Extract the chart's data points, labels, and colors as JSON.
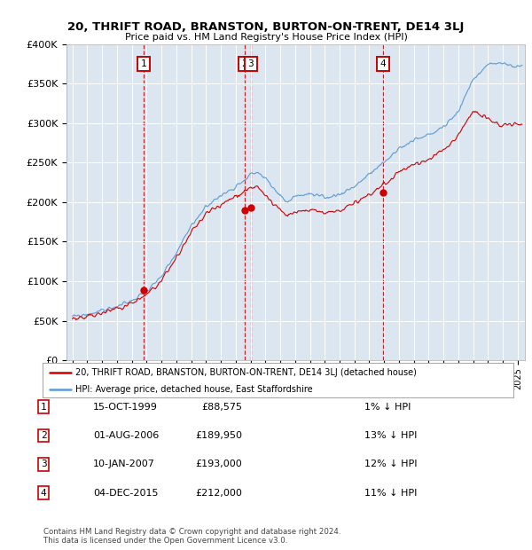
{
  "title": "20, THRIFT ROAD, BRANSTON, BURTON-ON-TRENT, DE14 3LJ",
  "subtitle": "Price paid vs. HM Land Registry's House Price Index (HPI)",
  "transactions": [
    {
      "num": 1,
      "date_num": 1999.79,
      "price": 88575
    },
    {
      "num": 2,
      "date_num": 2006.58,
      "price": 189950
    },
    {
      "num": 3,
      "date_num": 2007.03,
      "price": 193000
    },
    {
      "num": 4,
      "date_num": 2015.92,
      "price": 212000
    }
  ],
  "transaction_table": [
    {
      "num": 1,
      "date": "15-OCT-1999",
      "price": "£88,575",
      "hpi": "1% ↓ HPI"
    },
    {
      "num": 2,
      "date": "01-AUG-2006",
      "price": "£189,950",
      "hpi": "13% ↓ HPI"
    },
    {
      "num": 3,
      "date": "10-JAN-2007",
      "price": "£193,000",
      "hpi": "12% ↓ HPI"
    },
    {
      "num": 4,
      "date": "04-DEC-2015",
      "price": "£212,000",
      "hpi": "11% ↓ HPI"
    }
  ],
  "legend_line1": "20, THRIFT ROAD, BRANSTON, BURTON-ON-TRENT, DE14 3LJ (detached house)",
  "legend_line2": "HPI: Average price, detached house, East Staffordshire",
  "footer1": "Contains HM Land Registry data © Crown copyright and database right 2024.",
  "footer2": "This data is licensed under the Open Government Licence v3.0.",
  "ylim": [
    0,
    400000
  ],
  "yticks": [
    0,
    50000,
    100000,
    150000,
    200000,
    250000,
    300000,
    350000,
    400000
  ],
  "red_color": "#cc0000",
  "blue_color": "#5b9bd5",
  "bg_color": "#dce6f1",
  "plot_bg": "#ffffff",
  "vline_color": "#cc0000",
  "marker_box_color": "#cc0000",
  "xlim_min": 1994.6,
  "xlim_max": 2025.5
}
